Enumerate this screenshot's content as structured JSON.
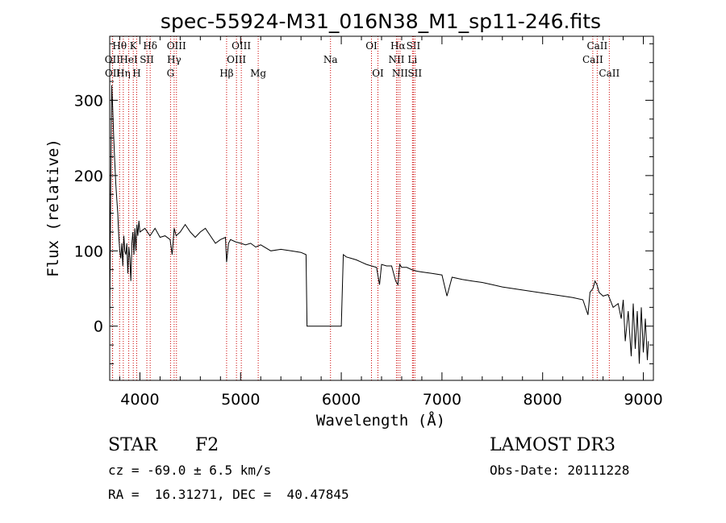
{
  "title": "spec-55924-M31_016N38_M1_sp11-246.fits",
  "info": {
    "class": "STAR",
    "subclass": "F2",
    "survey": "LAMOST DR3",
    "cz": "cz = -69.0 ± 6.5 km/s",
    "obs_date": "Obs-Date: 20111228",
    "coords": "RA =  16.31271, DEC =  40.47845"
  },
  "chart_data": {
    "type": "line",
    "title": "spec-55924-M31_016N38_M1_sp11-246.fits",
    "xlabel": "Wavelength (Å)",
    "ylabel": "Flux (relative)",
    "xlim": [
      3700,
      9100
    ],
    "ylim": [
      -72,
      385
    ],
    "xticks": [
      4000,
      5000,
      6000,
      7000,
      8000,
      9000
    ],
    "yticks": [
      0,
      100,
      200,
      300
    ],
    "xtick_labels": [
      "4000",
      "5000",
      "6000",
      "7000",
      "8000",
      "9000"
    ],
    "ytick_labels": [
      "0",
      "100",
      "200",
      "300"
    ],
    "grid": false,
    "line_color": "#000000",
    "marker_color": "#cc0000",
    "spectrum": {
      "x": [
        3700,
        3710,
        3720,
        3730,
        3740,
        3750,
        3760,
        3770,
        3780,
        3790,
        3800,
        3810,
        3820,
        3830,
        3840,
        3850,
        3860,
        3870,
        3880,
        3890,
        3900,
        3910,
        3920,
        3930,
        3940,
        3950,
        3960,
        3970,
        3980,
        3990,
        4000,
        4050,
        4100,
        4150,
        4200,
        4250,
        4300,
        4320,
        4340,
        4360,
        4400,
        4450,
        4500,
        4550,
        4600,
        4650,
        4700,
        4750,
        4800,
        4850,
        4861,
        4880,
        4900,
        4950,
        5000,
        5050,
        5100,
        5150,
        5200,
        5300,
        5400,
        5500,
        5600,
        5650,
        5660,
        5680,
        6000,
        6020,
        6050,
        6100,
        6150,
        6200,
        6250,
        6300,
        6350,
        6380,
        6400,
        6450,
        6500,
        6540,
        6563,
        6580,
        6600,
        6650,
        6700,
        6750,
        6800,
        6900,
        7000,
        7050,
        7100,
        7200,
        7300,
        7400,
        7500,
        7600,
        7700,
        7800,
        7900,
        8000,
        8100,
        8200,
        8300,
        8400,
        8450,
        8470,
        8500,
        8520,
        8540,
        8560,
        8600,
        8650,
        8700,
        8750,
        8780,
        8800,
        8820,
        8850,
        8880,
        8900,
        8920,
        8940,
        8960,
        8980,
        9000,
        9020,
        9040,
        9050
      ],
      "y": [
        0,
        180,
        320,
        290,
        250,
        220,
        190,
        170,
        150,
        120,
        100,
        90,
        110,
        80,
        120,
        100,
        95,
        110,
        70,
        105,
        90,
        60,
        110,
        125,
        95,
        130,
        100,
        135,
        120,
        140,
        125,
        130,
        120,
        130,
        118,
        120,
        115,
        95,
        130,
        120,
        125,
        135,
        125,
        118,
        125,
        130,
        120,
        110,
        115,
        118,
        85,
        110,
        115,
        112,
        110,
        108,
        110,
        105,
        108,
        100,
        102,
        100,
        98,
        95,
        0,
        0,
        0,
        95,
        92,
        90,
        88,
        85,
        82,
        80,
        78,
        55,
        82,
        80,
        80,
        60,
        55,
        82,
        78,
        78,
        75,
        73,
        72,
        70,
        68,
        40,
        65,
        62,
        60,
        58,
        55,
        52,
        50,
        48,
        46,
        44,
        42,
        40,
        38,
        35,
        15,
        45,
        50,
        60,
        55,
        45,
        40,
        42,
        25,
        30,
        10,
        35,
        -20,
        20,
        -40,
        30,
        -30,
        20,
        -50,
        25,
        -35,
        10,
        -45,
        -20
      ]
    },
    "lines": [
      {
        "label": "OII",
        "wave": 3727,
        "row": 2
      },
      {
        "label": "OII",
        "wave": 3729,
        "row": 3
      },
      {
        "label": "Hθ",
        "wave": 3798,
        "row": 1
      },
      {
        "label": "Hη",
        "wave": 3835,
        "row": 3
      },
      {
        "label": "HeI",
        "wave": 3889,
        "row": 2
      },
      {
        "label": "K",
        "wave": 3934,
        "row": 1
      },
      {
        "label": "H",
        "wave": 3968,
        "row": 3
      },
      {
        "label": "SII",
        "wave": 4069,
        "row": 2
      },
      {
        "label": "Hδ",
        "wave": 4102,
        "row": 1
      },
      {
        "label": "G",
        "wave": 4304,
        "row": 3
      },
      {
        "label": "Hγ",
        "wave": 4340,
        "row": 2
      },
      {
        "label": "OIII",
        "wave": 4363,
        "row": 1
      },
      {
        "label": "Hβ",
        "wave": 4861,
        "row": 3
      },
      {
        "label": "OIII",
        "wave": 4959,
        "row": 2
      },
      {
        "label": "OIII",
        "wave": 5007,
        "row": 1
      },
      {
        "label": "Mg",
        "wave": 5175,
        "row": 3
      },
      {
        "label": "Na",
        "wave": 5893,
        "row": 2
      },
      {
        "label": "OI",
        "wave": 6300,
        "row": 1
      },
      {
        "label": "OI",
        "wave": 6364,
        "row": 3
      },
      {
        "label": "NII",
        "wave": 6548,
        "row": 2
      },
      {
        "label": "Hα",
        "wave": 6563,
        "row": 1
      },
      {
        "label": "NII",
        "wave": 6583,
        "row": 3
      },
      {
        "label": "Li",
        "wave": 6707,
        "row": 2
      },
      {
        "label": "SII",
        "wave": 6716,
        "row": 1
      },
      {
        "label": "SII",
        "wave": 6731,
        "row": 3
      },
      {
        "label": "CaII",
        "wave": 8498,
        "row": 2
      },
      {
        "label": "CaII",
        "wave": 8542,
        "row": 1
      },
      {
        "label": "CaII",
        "wave": 8662,
        "row": 3
      }
    ]
  }
}
